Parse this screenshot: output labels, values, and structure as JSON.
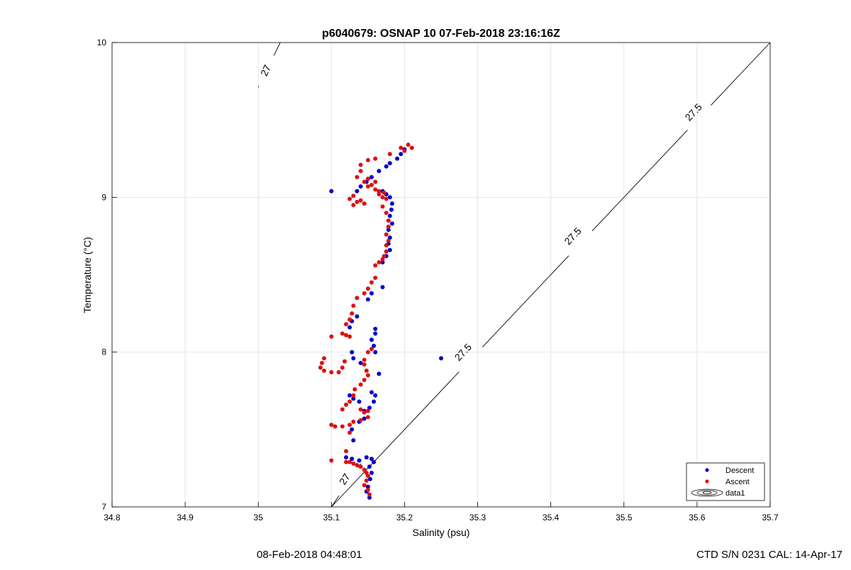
{
  "chart_data": {
    "type": "scatter",
    "title": "p6040679: OSNAP 10 07-Feb-2018 23:16:16Z",
    "xlabel": "Salinity (psu)",
    "ylabel": "Temperature (°C)",
    "xlim": [
      34.8,
      35.7
    ],
    "ylim": [
      7,
      10
    ],
    "x_ticks": [
      34.8,
      34.9,
      35,
      35.1,
      35.2,
      35.3,
      35.4,
      35.5,
      35.6,
      35.7
    ],
    "x_tick_labels": [
      "34.8",
      "34.9",
      "35",
      "35.1",
      "35.2",
      "35.3",
      "35.4",
      "35.5",
      "35.6",
      "35.7"
    ],
    "y_ticks": [
      7,
      8,
      9,
      10
    ],
    "y_tick_labels": [
      "7",
      "8",
      "9",
      "10"
    ],
    "grid": true,
    "legend_position": "bottom-right",
    "legend": [
      "Descent",
      "Ascent",
      "data1"
    ],
    "contours": [
      {
        "level": "27",
        "points": [
          [
            35.0,
            9.71
          ],
          [
            35.03,
            10.0
          ]
        ],
        "labels": [
          [
            35.01,
            9.82
          ]
        ]
      },
      {
        "level": "27",
        "points": [
          [
            35.1,
            7.0
          ],
          [
            35.14,
            7.28
          ]
        ],
        "labels": [
          [
            35.118,
            7.18
          ]
        ]
      },
      {
        "level": "27.5",
        "points": [
          [
            35.1,
            7.0
          ],
          [
            35.7,
            10.0
          ]
        ],
        "labels": [
          [
            35.28,
            8.0
          ],
          [
            35.43,
            8.75
          ],
          [
            35.595,
            9.55
          ]
        ]
      }
    ],
    "series": [
      {
        "name": "Descent",
        "color": "#0000cc",
        "points": [
          [
            35.2,
            9.31
          ],
          [
            35.195,
            9.28
          ],
          [
            35.19,
            9.25
          ],
          [
            35.18,
            9.22
          ],
          [
            35.175,
            9.2
          ],
          [
            35.165,
            9.17
          ],
          [
            35.155,
            9.13
          ],
          [
            35.148,
            9.1
          ],
          [
            35.14,
            9.07
          ],
          [
            35.135,
            9.04
          ],
          [
            35.1,
            9.04
          ],
          [
            35.17,
            9.04
          ],
          [
            35.175,
            9.02
          ],
          [
            35.18,
            9.0
          ],
          [
            35.183,
            8.96
          ],
          [
            35.182,
            8.92
          ],
          [
            35.18,
            8.88
          ],
          [
            35.183,
            8.83
          ],
          [
            35.178,
            8.79
          ],
          [
            35.18,
            8.74
          ],
          [
            35.178,
            8.7
          ],
          [
            35.18,
            8.66
          ],
          [
            35.175,
            8.62
          ],
          [
            35.17,
            8.58
          ],
          [
            35.17,
            8.42
          ],
          [
            35.155,
            8.38
          ],
          [
            35.15,
            8.34
          ],
          [
            35.135,
            8.23
          ],
          [
            35.128,
            8.2
          ],
          [
            35.125,
            8.16
          ],
          [
            35.16,
            8.15
          ],
          [
            35.16,
            8.12
          ],
          [
            35.155,
            8.08
          ],
          [
            35.158,
            8.04
          ],
          [
            35.16,
            8.0
          ],
          [
            35.128,
            8.0
          ],
          [
            35.13,
            7.96
          ],
          [
            35.14,
            7.93
          ],
          [
            35.165,
            7.86
          ],
          [
            35.125,
            7.72
          ],
          [
            35.13,
            7.7
          ],
          [
            35.138,
            7.68
          ],
          [
            35.155,
            7.74
          ],
          [
            35.16,
            7.72
          ],
          [
            35.158,
            7.68
          ],
          [
            35.152,
            7.64
          ],
          [
            35.145,
            7.62
          ],
          [
            35.145,
            7.57
          ],
          [
            35.138,
            7.55
          ],
          [
            35.128,
            7.5
          ],
          [
            35.13,
            7.43
          ],
          [
            35.25,
            7.96
          ],
          [
            35.12,
            7.32
          ],
          [
            35.128,
            7.31
          ],
          [
            35.138,
            7.3
          ],
          [
            35.148,
            7.32
          ],
          [
            35.155,
            7.31
          ],
          [
            35.158,
            7.29
          ],
          [
            35.152,
            7.26
          ],
          [
            35.155,
            7.22
          ],
          [
            35.153,
            7.18
          ],
          [
            35.15,
            7.13
          ],
          [
            35.148,
            7.1
          ],
          [
            35.152,
            7.06
          ]
        ]
      },
      {
        "name": "Ascent",
        "color": "#dd1111",
        "points": [
          [
            35.205,
            9.34
          ],
          [
            35.21,
            9.32
          ],
          [
            35.2,
            9.3
          ],
          [
            35.195,
            9.32
          ],
          [
            35.18,
            9.28
          ],
          [
            35.16,
            9.25
          ],
          [
            35.15,
            9.24
          ],
          [
            35.14,
            9.21
          ],
          [
            35.14,
            9.17
          ],
          [
            35.135,
            9.13
          ],
          [
            35.145,
            9.1
          ],
          [
            35.15,
            9.07
          ],
          [
            35.16,
            9.05
          ],
          [
            35.165,
            9.02
          ],
          [
            35.17,
            9.0
          ],
          [
            35.13,
            9.01
          ],
          [
            35.125,
            8.99
          ],
          [
            35.135,
            8.97
          ],
          [
            35.13,
            8.95
          ],
          [
            35.14,
            8.98
          ],
          [
            35.145,
            8.96
          ],
          [
            35.15,
            9.12
          ],
          [
            35.155,
            9.08
          ],
          [
            35.16,
            9.1
          ],
          [
            35.165,
            9.04
          ],
          [
            35.172,
            9.03
          ],
          [
            35.175,
            8.99
          ],
          [
            35.17,
            8.94
          ],
          [
            35.175,
            8.9
          ],
          [
            35.178,
            8.85
          ],
          [
            35.178,
            8.81
          ],
          [
            35.175,
            8.76
          ],
          [
            35.178,
            8.72
          ],
          [
            35.175,
            8.69
          ],
          [
            35.175,
            8.65
          ],
          [
            35.172,
            8.62
          ],
          [
            35.17,
            8.6
          ],
          [
            35.165,
            8.58
          ],
          [
            35.16,
            8.56
          ],
          [
            35.16,
            8.48
          ],
          [
            35.155,
            8.45
          ],
          [
            35.15,
            8.41
          ],
          [
            35.145,
            8.38
          ],
          [
            35.135,
            8.35
          ],
          [
            35.13,
            8.3
          ],
          [
            35.128,
            8.25
          ],
          [
            35.125,
            8.21
          ],
          [
            35.12,
            8.18
          ],
          [
            35.115,
            8.12
          ],
          [
            35.12,
            8.11
          ],
          [
            35.125,
            8.1
          ],
          [
            35.1,
            8.1
          ],
          [
            35.155,
            8.02
          ],
          [
            35.15,
            8.0
          ],
          [
            35.145,
            7.95
          ],
          [
            35.145,
            7.92
          ],
          [
            35.148,
            7.88
          ],
          [
            35.15,
            7.85
          ],
          [
            35.145,
            7.82
          ],
          [
            35.14,
            7.79
          ],
          [
            35.132,
            7.76
          ],
          [
            35.13,
            7.72
          ],
          [
            35.125,
            7.68
          ],
          [
            35.12,
            7.66
          ],
          [
            35.115,
            7.63
          ],
          [
            35.14,
            7.63
          ],
          [
            35.145,
            7.61
          ],
          [
            35.15,
            7.62
          ],
          [
            35.15,
            7.58
          ],
          [
            35.14,
            7.56
          ],
          [
            35.13,
            7.55
          ],
          [
            35.125,
            7.53
          ],
          [
            35.115,
            7.52
          ],
          [
            35.105,
            7.52
          ],
          [
            35.1,
            7.53
          ],
          [
            35.125,
            7.48
          ],
          [
            35.12,
            7.36
          ],
          [
            35.1,
            7.3
          ],
          [
            35.09,
            7.96
          ],
          [
            35.087,
            7.93
          ],
          [
            35.085,
            7.9
          ],
          [
            35.09,
            7.88
          ],
          [
            35.1,
            7.87
          ],
          [
            35.11,
            7.87
          ],
          [
            35.115,
            7.9
          ],
          [
            35.118,
            7.94
          ],
          [
            35.12,
            7.29
          ],
          [
            35.125,
            7.29
          ],
          [
            35.13,
            7.28
          ],
          [
            35.135,
            7.27
          ],
          [
            35.14,
            7.26
          ],
          [
            35.145,
            7.24
          ],
          [
            35.148,
            7.22
          ],
          [
            35.15,
            7.2
          ],
          [
            35.148,
            7.17
          ],
          [
            35.145,
            7.14
          ],
          [
            35.15,
            7.11
          ],
          [
            35.152,
            7.08
          ]
        ]
      }
    ]
  },
  "footer": {
    "left": "08-Feb-2018 04:48:01",
    "right": "CTD S/N 0231  CAL: 14-Apr-17"
  }
}
